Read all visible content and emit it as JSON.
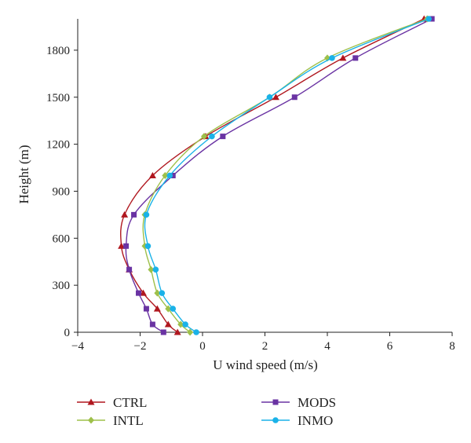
{
  "chart_data": {
    "type": "line",
    "xlabel": "U wind speed (m/s)",
    "ylabel": "Height (m)",
    "xlim": [
      -4,
      8
    ],
    "ylim": [
      0,
      2000
    ],
    "xticks": [
      -4,
      -2,
      0,
      2,
      4,
      6,
      8
    ],
    "yticks": [
      0,
      300,
      600,
      900,
      1200,
      1500,
      1800
    ],
    "xtick_labels": [
      "−4",
      "−2",
      "0",
      "2",
      "4",
      "6",
      "8"
    ],
    "ytick_labels": [
      "0",
      "300",
      "600",
      "900",
      "1200",
      "1500",
      "1800"
    ],
    "grid": false,
    "legend_position": "bottom",
    "series": [
      {
        "name": "CTRL",
        "color": "#b0171f",
        "marker": "triangle",
        "points": [
          {
            "x": -0.8,
            "y": 0
          },
          {
            "x": -1.1,
            "y": 50
          },
          {
            "x": -1.45,
            "y": 150
          },
          {
            "x": -1.9,
            "y": 250
          },
          {
            "x": -2.35,
            "y": 400
          },
          {
            "x": -2.6,
            "y": 550
          },
          {
            "x": -2.5,
            "y": 750
          },
          {
            "x": -1.6,
            "y": 1000
          },
          {
            "x": 0.1,
            "y": 1250
          },
          {
            "x": 2.35,
            "y": 1500
          },
          {
            "x": 4.5,
            "y": 1750
          },
          {
            "x": 7.1,
            "y": 2000
          }
        ]
      },
      {
        "name": "MODS",
        "color": "#6a33a3",
        "marker": "square",
        "points": [
          {
            "x": -1.25,
            "y": 0
          },
          {
            "x": -1.6,
            "y": 50
          },
          {
            "x": -1.8,
            "y": 150
          },
          {
            "x": -2.05,
            "y": 250
          },
          {
            "x": -2.35,
            "y": 400
          },
          {
            "x": -2.45,
            "y": 550
          },
          {
            "x": -2.2,
            "y": 750
          },
          {
            "x": -0.95,
            "y": 1000
          },
          {
            "x": 0.65,
            "y": 1250
          },
          {
            "x": 2.95,
            "y": 1500
          },
          {
            "x": 4.9,
            "y": 1750
          },
          {
            "x": 7.35,
            "y": 2000
          }
        ]
      },
      {
        "name": "INTL",
        "color": "#9ec04a",
        "marker": "diamond",
        "points": [
          {
            "x": -0.4,
            "y": 0
          },
          {
            "x": -0.7,
            "y": 50
          },
          {
            "x": -1.1,
            "y": 150
          },
          {
            "x": -1.45,
            "y": 250
          },
          {
            "x": -1.65,
            "y": 400
          },
          {
            "x": -1.85,
            "y": 550
          },
          {
            "x": -1.85,
            "y": 750
          },
          {
            "x": -1.2,
            "y": 1000
          },
          {
            "x": 0.05,
            "y": 1250
          },
          {
            "x": 2.15,
            "y": 1500
          },
          {
            "x": 4.0,
            "y": 1750
          },
          {
            "x": 7.2,
            "y": 2000
          }
        ]
      },
      {
        "name": "INMO",
        "color": "#1ab2e8",
        "marker": "circle",
        "points": [
          {
            "x": -0.2,
            "y": 0
          },
          {
            "x": -0.55,
            "y": 50
          },
          {
            "x": -0.95,
            "y": 150
          },
          {
            "x": -1.3,
            "y": 250
          },
          {
            "x": -1.5,
            "y": 400
          },
          {
            "x": -1.75,
            "y": 550
          },
          {
            "x": -1.8,
            "y": 750
          },
          {
            "x": -1.05,
            "y": 1000
          },
          {
            "x": 0.3,
            "y": 1250
          },
          {
            "x": 2.15,
            "y": 1500
          },
          {
            "x": 4.15,
            "y": 1750
          },
          {
            "x": 7.25,
            "y": 2000
          }
        ]
      }
    ]
  }
}
